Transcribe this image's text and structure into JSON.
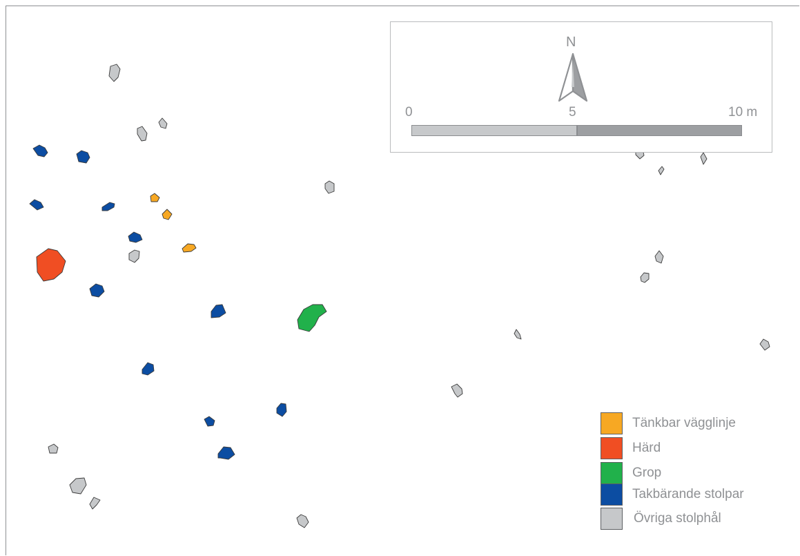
{
  "scale": {
    "ticks": [
      "0",
      "5",
      "10 m"
    ],
    "segments": [
      {
        "from": 0,
        "to": 5,
        "color": "#c7c9cb"
      },
      {
        "from": 5,
        "to": 10,
        "color": "#9d9fa2"
      }
    ],
    "max": 10
  },
  "north_arrow": {
    "label": "N",
    "icon": "north-arrow-icon"
  },
  "legend": [
    {
      "label": "Tänkbar vägglinje",
      "color": "#f7a823"
    },
    {
      "label": "Härd",
      "color": "#f04e23"
    },
    {
      "label": "Grop",
      "color": "#21b14b"
    },
    {
      "label": "Takbärande stolpar",
      "color": "#0c4da2"
    },
    {
      "label": "Övriga stolphål",
      "color": "#c6c8ca"
    }
  ],
  "colors": {
    "tankbar_vagglinje": "#f7a823",
    "hard": "#f04e23",
    "grop": "#21b14b",
    "takbarande_stolpar": "#0c4da2",
    "ovriga_stolphal": "#c6c8ca",
    "outline": "#3a3a3a",
    "frame": "#8d8f92"
  }
}
